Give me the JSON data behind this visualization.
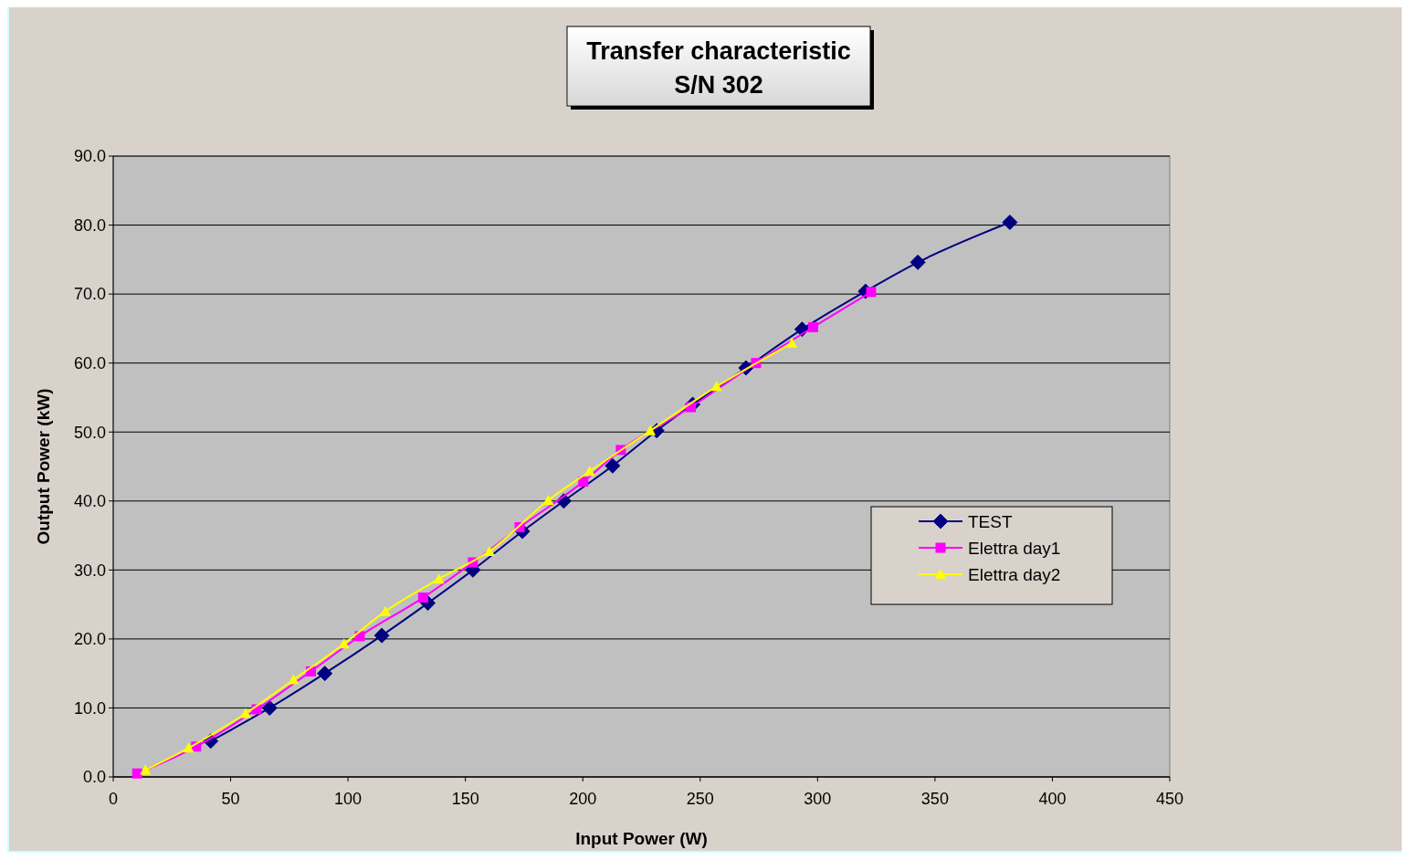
{
  "chart_data": {
    "type": "line",
    "title": "Transfer characteristic\nS/N 302",
    "xlabel": "Input Power (W)",
    "ylabel": "Output Power (kW)",
    "xlim": [
      0,
      450
    ],
    "xticks": [
      0,
      50,
      100,
      150,
      200,
      250,
      300,
      350,
      400,
      450
    ],
    "ylim": [
      0,
      90
    ],
    "yticks": [
      {
        "value": 0,
        "label": "0.0"
      },
      {
        "value": 10,
        "label": "10.0"
      },
      {
        "value": 20,
        "label": "20.0"
      },
      {
        "value": 30,
        "label": "30.0"
      },
      {
        "value": 40,
        "label": "40.0"
      },
      {
        "value": 50,
        "label": "50.0"
      },
      {
        "value": 60,
        "label": "60.0"
      },
      {
        "value": 70,
        "label": "70.0"
      },
      {
        "value": 80,
        "label": "80.0"
      },
      {
        "value": 90,
        "label": "90.0"
      }
    ],
    "grid": "y",
    "legend": "right",
    "line_style": "solid",
    "series": [
      {
        "name": "TEST",
        "color": "#000080",
        "marker": "diamond",
        "x": [
          41.5,
          66.6,
          90.1,
          114.4,
          134,
          153.2,
          174.3,
          191.9,
          212.7,
          231.5,
          246.8,
          269.5,
          293.4,
          320.4,
          342.7,
          381.9
        ],
        "values": [
          5.2,
          10.0,
          15.0,
          20.5,
          25.2,
          30.0,
          35.6,
          40.0,
          45.1,
          50.2,
          54.0,
          59.3,
          64.9,
          70.4,
          74.6,
          80.4
        ]
      },
      {
        "name": "Elettra day1",
        "color": "#ff00ff",
        "marker": "square",
        "x": [
          10.2,
          35.3,
          61.1,
          84.2,
          105,
          132,
          153.2,
          173.1,
          200.2,
          216.2,
          246,
          273.8,
          298.1,
          322.8
        ],
        "values": [
          0.5,
          4.4,
          9.8,
          15.3,
          20.4,
          26.0,
          31.1,
          36.2,
          42.8,
          47.4,
          53.6,
          60.0,
          65.2,
          70.3
        ]
      },
      {
        "name": "Elettra day2",
        "color": "#ffff00",
        "marker": "triangle",
        "x": [
          13.7,
          32.1,
          56.4,
          76.8,
          98.3,
          115.9,
          138.7,
          160.2,
          185.3,
          202.9,
          228.7,
          257,
          289.1
        ],
        "values": [
          1.0,
          4.2,
          9.2,
          14.1,
          19.3,
          24.0,
          28.7,
          32.7,
          40.1,
          44.3,
          50.2,
          56.6,
          62.9
        ]
      }
    ]
  }
}
